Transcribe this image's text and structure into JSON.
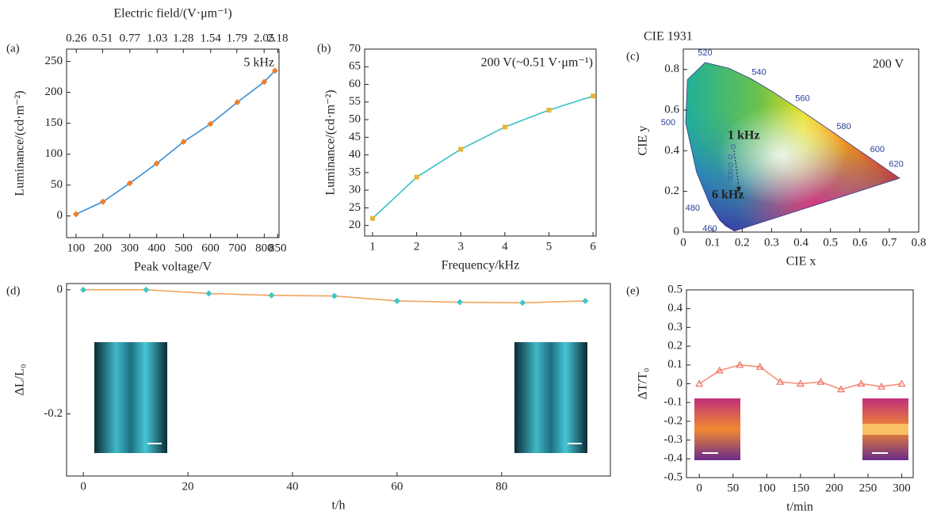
{
  "chart_data": [
    {
      "type": "line",
      "label": "(a)",
      "xlabel": "Peak voltage/V",
      "ylabel": "Luminance/(cd·m⁻²)",
      "x2label": "Electric field/(V·μm⁻¹)",
      "x": [
        100,
        200,
        300,
        400,
        500,
        600,
        700,
        800,
        840
      ],
      "series": [
        {
          "values": [
            3,
            23,
            53,
            85,
            120,
            149,
            184,
            217,
            235
          ],
          "color": "#3b8fd6",
          "marker_color": "#f07f2a",
          "marker": "diamond"
        }
      ],
      "xlim": [
        65,
        855
      ],
      "ylim": [
        -35,
        270
      ],
      "xticks": [
        100,
        200,
        300,
        400,
        500,
        600,
        700,
        800,
        850
      ],
      "yticks": [
        0,
        50,
        100,
        150,
        200,
        250
      ],
      "x2lim": [
        0.167,
        2.192
      ],
      "x2ticks": [
        0.26,
        0.51,
        0.77,
        1.03,
        1.28,
        1.54,
        1.79,
        2.05,
        2.18
      ],
      "annotations": [
        "5 kHz"
      ]
    },
    {
      "type": "line",
      "label": "(b)",
      "xlabel": "Frequency/kHz",
      "ylabel": "Luminance/(cd·m⁻²)",
      "x": [
        1,
        2,
        3,
        4,
        5,
        6
      ],
      "series": [
        {
          "values": [
            22,
            33.7,
            41.6,
            47.9,
            52.7,
            56.7
          ],
          "color": "#3cc0c0",
          "marker_color": "#e8b43a",
          "marker": "square"
        }
      ],
      "xlim": [
        0.82,
        6.07
      ],
      "ylim": [
        17,
        70
      ],
      "xticks": [
        1,
        2,
        3,
        4,
        5,
        6
      ],
      "yticks": [
        20,
        25,
        30,
        35,
        40,
        45,
        50,
        55,
        60,
        65,
        70
      ],
      "annotations": [
        "200 V(~0.51 V·μm⁻¹)"
      ]
    },
    {
      "type": "scatter",
      "label": "(c)",
      "title": "CIE 1931",
      "xlabel": "CIE x",
      "ylabel": "CIE y",
      "x": [
        0.17,
        0.16,
        0.16,
        0.16,
        0.16,
        0.16
      ],
      "series": [
        {
          "values": [
            0.42,
            0.37,
            0.33,
            0.3,
            0.28,
            0.26
          ],
          "color": "#3a5fb0",
          "marker_color": "#3a5fb0",
          "marker": "circle"
        }
      ],
      "xlim": [
        0,
        0.8
      ],
      "ylim": [
        0,
        0.9
      ],
      "xticks": [
        0,
        0.1,
        0.2,
        0.3,
        0.4,
        0.5,
        0.6,
        0.7,
        0.8
      ],
      "yticks": [
        0,
        0.2,
        0.4,
        0.6,
        0.8
      ],
      "locus_labels": [
        "460",
        "480",
        "500",
        "520",
        "540",
        "560",
        "580",
        "600",
        "620"
      ],
      "annotations": [
        "200 V",
        "1 kHz",
        "6 kHz"
      ]
    },
    {
      "type": "line",
      "label": "(d)",
      "xlabel": "t/h",
      "ylabel": "ΔL/L₀",
      "x": [
        0,
        12,
        24,
        36,
        48,
        60,
        72,
        84,
        96
      ],
      "series": [
        {
          "values": [
            0,
            0,
            -0.006,
            -0.009,
            -0.01,
            -0.018,
            -0.02,
            -0.021,
            -0.018
          ],
          "color": "#f4a460",
          "marker_color": "#3ec6c9",
          "marker": "diamond"
        }
      ],
      "xlim": [
        -3.2,
        100.8
      ],
      "ylim": [
        -0.3,
        0.01
      ],
      "xticks": [
        0,
        20,
        40,
        60,
        80
      ],
      "yticks": [
        0,
        -0.2
      ],
      "annotations": []
    },
    {
      "type": "line",
      "label": "(e)",
      "xlabel": "t/min",
      "ylabel": "ΔT/T₀",
      "x": [
        0,
        30,
        60,
        90,
        120,
        150,
        180,
        210,
        240,
        270,
        300
      ],
      "series": [
        {
          "values": [
            0,
            0.07,
            0.1,
            0.09,
            0.01,
            0,
            0.01,
            -0.03,
            0,
            -0.015,
            0
          ],
          "color": "#f4907a",
          "marker_color": "#f07060",
          "marker": "triangle"
        }
      ],
      "xlim": [
        -19,
        317
      ],
      "ylim": [
        -0.5,
        0.5
      ],
      "xticks": [
        0,
        50,
        100,
        150,
        200,
        250,
        300
      ],
      "yticks": [
        -0.5,
        -0.4,
        -0.3,
        -0.2,
        -0.1,
        0,
        0.1,
        0.2,
        0.3,
        0.4,
        0.5
      ],
      "annotations": []
    }
  ]
}
